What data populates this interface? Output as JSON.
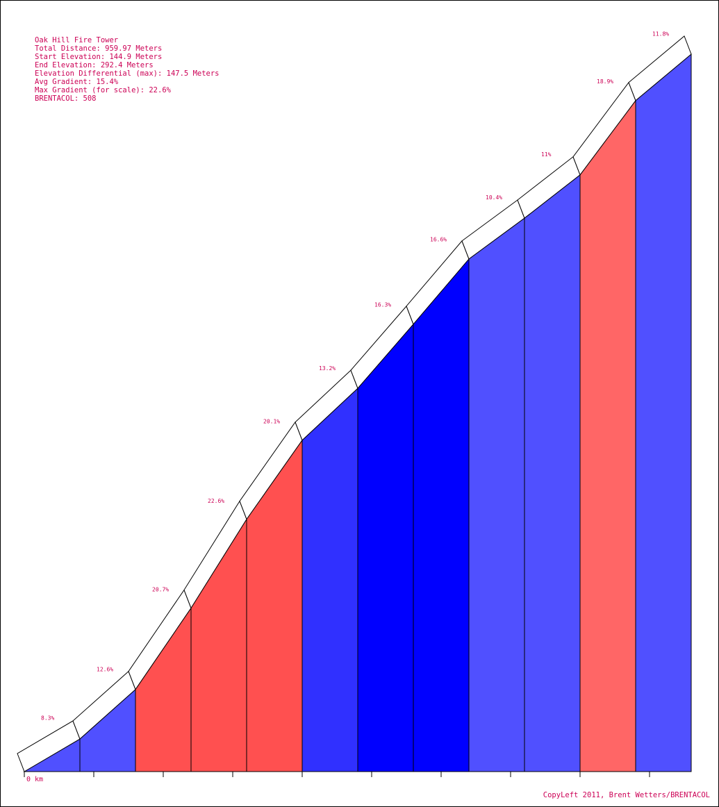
{
  "info": {
    "lines": [
      "Oak Hill Fire Tower",
      "Total Distance: 959.97 Meters",
      "Start Elevation: 144.9 Meters",
      "End Elevation: 292.4 Meters",
      "Elevation Differential (max): 147.5 Meters",
      "Avg Gradient: 15.4%",
      "Max Gradient (for scale): 22.6%",
      "BRENTACOL: 508"
    ]
  },
  "copyleft": "CopyLeft 2011, Brent Wetters/BRENTACOL",
  "chart_data": {
    "type": "area",
    "total_distance_m": 959.97,
    "start_elevation_m": 144.9,
    "end_elevation_m": 292.4,
    "x_start_label": "0 km",
    "segments": [
      {
        "gradient": 8.3,
        "label": "8.3%",
        "color": "#5050ff"
      },
      {
        "gradient": 12.6,
        "label": "12.6%",
        "color": "#5050ff"
      },
      {
        "gradient": 20.7,
        "label": "20.7%",
        "color": "#ff5050"
      },
      {
        "gradient": 22.6,
        "label": "22.6%",
        "color": "#ff5050"
      },
      {
        "gradient": 20.1,
        "label": "20.1%",
        "color": "#ff5050"
      },
      {
        "gradient": 13.2,
        "label": "13.2%",
        "color": "#3030ff"
      },
      {
        "gradient": 16.3,
        "label": "16.3%",
        "color": "#0000ff"
      },
      {
        "gradient": 16.6,
        "label": "16.6%",
        "color": "#0000ff"
      },
      {
        "gradient": 10.4,
        "label": "10.4%",
        "color": "#5050ff"
      },
      {
        "gradient": 11,
        "label": "11%",
        "color": "#5050ff"
      },
      {
        "gradient": 18.9,
        "label": "18.9%",
        "color": "#ff6666"
      },
      {
        "gradient": 11.8,
        "label": "11.8%",
        "color": "#5050ff"
      }
    ],
    "colors": {
      "low": "#5050ff",
      "high": "#ff5050",
      "text": "#cc0055"
    }
  }
}
